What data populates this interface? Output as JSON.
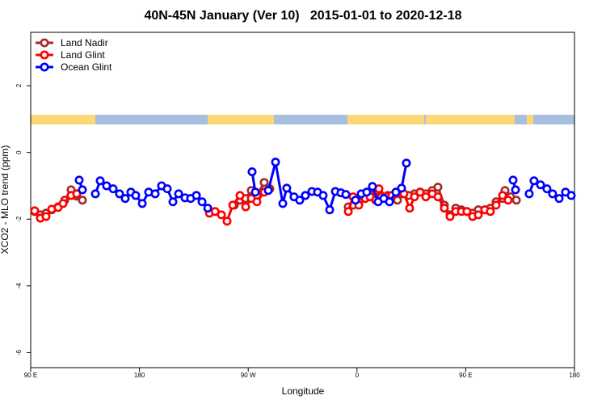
{
  "chart_data": {
    "type": "line",
    "title": "40N-45N January (Ver 10)   2015-01-01 to 2020-12-18",
    "xlabel": "Longitude",
    "ylabel": "XCO2 - MLO trend (ppm)",
    "xlim": [
      90,
      540
    ],
    "ylim": [
      -6.45,
      3.6
    ],
    "xticks": [
      {
        "value": 90,
        "label": "90 E"
      },
      180,
      {
        "value": 270,
        "label": "90 W"
      },
      {
        "value": 360,
        "label": "0"
      },
      {
        "value": 450,
        "label": "90 E"
      },
      {
        "value": 540,
        "label": "180"
      }
    ],
    "yticks": [
      2,
      0,
      -2,
      -4,
      -6
    ],
    "legend": "top-left",
    "series": [
      {
        "name": "Land Nadir",
        "color": "#a52a2a",
        "x": [
          93.3,
          98.0,
          102.7,
          107.4,
          112.7,
          118.1,
          123.4,
          128.1,
          132.8,
          null,
          258.5,
          263.2,
          267.9,
          272.5,
          277.2,
          283.2,
          287.9,
          null,
          352.8,
          356.8,
          361.5,
          366.8,
          370.8,
          375.5,
          380.2,
          385.5,
          390.2,
          393.5,
          397.5,
          402.9,
          407.6,
          412.3,
          417.0,
          422.3,
          427.0,
          432.3,
          437.0,
          441.7,
          446.4,
          451.0,
          455.7,
          460.4,
          465.8,
          470.4,
          475.1,
          480.5,
          482.5,
          487.1,
          491.9
        ],
        "values": [
          -1.77,
          -1.87,
          -1.82,
          -1.72,
          -1.63,
          -1.43,
          -1.12,
          -1.31,
          -1.43,
          null,
          -1.58,
          -1.43,
          -1.38,
          -1.14,
          -1.29,
          -0.9,
          -1.09,
          null,
          -1.63,
          -1.58,
          -1.48,
          -1.38,
          -1.24,
          -1.43,
          -1.33,
          -1.29,
          -1.33,
          -1.43,
          -1.24,
          -1.29,
          -1.24,
          -1.19,
          -1.24,
          -1.14,
          -1.04,
          -1.58,
          -1.87,
          -1.67,
          -1.72,
          -1.77,
          -1.82,
          -1.72,
          -1.72,
          -1.67,
          -1.48,
          -1.38,
          -1.14,
          -1.33,
          -1.43
        ]
      },
      {
        "name": "Land Glint",
        "color": "#ff0000",
        "x": [
          93.3,
          98.0,
          102.7,
          107.4,
          112.7,
          116.8,
          123.4,
          128.1,
          null,
          237.9,
          242.6,
          247.8,
          252.5,
          257.2,
          263.2,
          267.9,
          272.5,
          277.2,
          283.2,
          null,
          352.8,
          356.8,
          361.5,
          366.8,
          370.8,
          375.5,
          378.2,
          384.2,
          388.9,
          392.9,
          398.9,
          403.6,
          407.6,
          412.3,
          417.0,
          422.3,
          427.0,
          432.3,
          437.0,
          441.7,
          446.4,
          451.0,
          455.7,
          460.4,
          465.8,
          470.4,
          475.1,
          480.5,
          485.1
        ],
        "values": [
          -1.75,
          -1.97,
          -1.92,
          -1.7,
          -1.65,
          -1.53,
          -1.29,
          -1.24,
          null,
          -1.82,
          -1.77,
          -1.87,
          -2.06,
          -1.58,
          -1.29,
          -1.63,
          -1.38,
          -1.48,
          -1.19,
          null,
          -1.77,
          -1.33,
          -1.58,
          -1.38,
          -1.33,
          -1.43,
          -1.09,
          -1.33,
          -1.29,
          -1.19,
          -1.24,
          -1.67,
          -1.33,
          -1.19,
          -1.33,
          -1.24,
          -1.33,
          -1.67,
          -1.92,
          -1.77,
          -1.77,
          -1.77,
          -1.92,
          -1.87,
          -1.72,
          -1.77,
          -1.58,
          -1.29,
          -1.43
        ]
      },
      {
        "name": "Ocean Glint",
        "color": "#0000ff",
        "x": [
          130.1,
          132.8,
          null,
          143.5,
          147.5,
          152.8,
          158.2,
          163.5,
          168.2,
          172.9,
          176.9,
          182.3,
          187.6,
          193.0,
          198.3,
          203.0,
          207.7,
          212.4,
          217.7,
          222.4,
          227.1,
          231.8,
          236.5,
          null,
          273.2,
          275.9,
          null,
          286.6,
          292.6,
          298.6,
          301.9,
          307.9,
          312.6,
          317.3,
          322.7,
          327.4,
          332.0,
          337.4,
          342.1,
          346.7,
          350.8,
          null,
          358.8,
          363.5,
          368.1,
          372.8,
          377.5,
          382.2,
          386.9,
          392.2,
          396.9,
          400.9,
          null,
          489.2,
          491.2,
          null,
          502.5,
          506.5,
          511.9,
          517.2,
          521.9,
          527.3,
          532.6,
          537.3
        ],
        "values": [
          -0.83,
          -1.12,
          null,
          -1.24,
          -0.85,
          -1.0,
          -1.09,
          -1.24,
          -1.38,
          -1.19,
          -1.29,
          -1.53,
          -1.19,
          -1.24,
          -1.0,
          -1.09,
          -1.48,
          -1.24,
          -1.36,
          -1.38,
          -1.29,
          -1.48,
          -1.67,
          null,
          -0.58,
          -1.19,
          null,
          -1.14,
          -0.29,
          -1.53,
          -1.07,
          -1.33,
          -1.43,
          -1.29,
          -1.17,
          -1.19,
          -1.29,
          -1.72,
          -1.17,
          -1.21,
          -1.26,
          null,
          -1.43,
          -1.24,
          -1.19,
          -1.02,
          -1.48,
          -1.38,
          -1.48,
          -1.19,
          -1.07,
          -0.32,
          null,
          -0.83,
          -1.12,
          null,
          -1.24,
          -0.85,
          -0.97,
          -1.09,
          -1.24,
          -1.38,
          -1.19,
          -1.29
        ]
      }
    ]
  }
}
